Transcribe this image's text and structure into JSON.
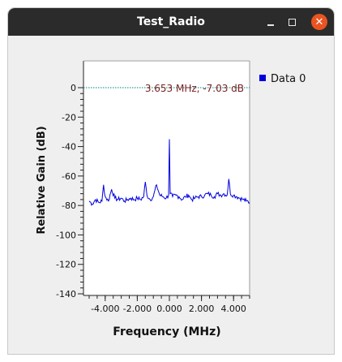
{
  "window": {
    "title": "Test_Radio",
    "minimize_icon": "minimize-icon",
    "maximize_icon": "maximize-icon",
    "close_icon": "close-icon",
    "close_color": "#e95420"
  },
  "plot": {
    "marker_label": "3.653 MHz, -7.03 dB",
    "legend_label": "Data 0",
    "trace_color": "#0000dd",
    "marker_line_color": "#008080"
  },
  "chart_data": {
    "type": "line",
    "title": "",
    "xlabel": "Frequency (MHz)",
    "ylabel": "Relative Gain (dB)",
    "xlim": [
      -5,
      5
    ],
    "ylim": [
      -140,
      5
    ],
    "x_ticks": [
      -4,
      -2,
      0,
      2,
      4
    ],
    "x_tick_labels": [
      "-4.000",
      "-2.000",
      "0.000",
      "2.000",
      "4.000"
    ],
    "y_ticks": [
      0,
      -20,
      -40,
      -60,
      -80,
      -100,
      -120,
      -140
    ],
    "y_tick_labels": [
      "0",
      "-20",
      "-40",
      "-60",
      "-80",
      "-100",
      "-120",
      "-140"
    ],
    "legend_position": "top-right",
    "series": [
      {
        "name": "Data 0",
        "color": "#0000dd",
        "x": [
          -5.0,
          -4.8,
          -4.6,
          -4.4,
          -4.2,
          -4.1,
          -4.0,
          -3.8,
          -3.6,
          -3.4,
          -3.2,
          -3.0,
          -2.8,
          -2.6,
          -2.4,
          -2.2,
          -2.0,
          -1.8,
          -1.6,
          -1.5,
          -1.4,
          -1.2,
          -1.0,
          -0.8,
          -0.6,
          -0.4,
          -0.2,
          -0.05,
          0.0,
          0.05,
          0.2,
          0.4,
          0.6,
          0.8,
          1.0,
          1.2,
          1.4,
          1.6,
          1.8,
          2.0,
          2.2,
          2.4,
          2.6,
          2.8,
          3.0,
          3.2,
          3.4,
          3.6,
          3.7,
          3.8,
          4.0,
          4.2,
          4.4,
          4.6,
          4.8,
          5.0
        ],
        "y": [
          -77,
          -79,
          -76,
          -78,
          -77,
          -66,
          -74,
          -77,
          -69,
          -75,
          -76,
          -75,
          -77,
          -76,
          -75,
          -76,
          -75,
          -76,
          -74,
          -64,
          -73,
          -76,
          -74,
          -66,
          -73,
          -74,
          -75,
          -73,
          -35,
          -72,
          -74,
          -73,
          -74,
          -76,
          -74,
          -73,
          -76,
          -75,
          -74,
          -74,
          -73,
          -72,
          -73,
          -74,
          -72,
          -73,
          -72,
          -73,
          -62,
          -72,
          -73,
          -74,
          -75,
          -76,
          -77,
          -78
        ]
      }
    ],
    "marker_line": {
      "y": 0
    }
  }
}
